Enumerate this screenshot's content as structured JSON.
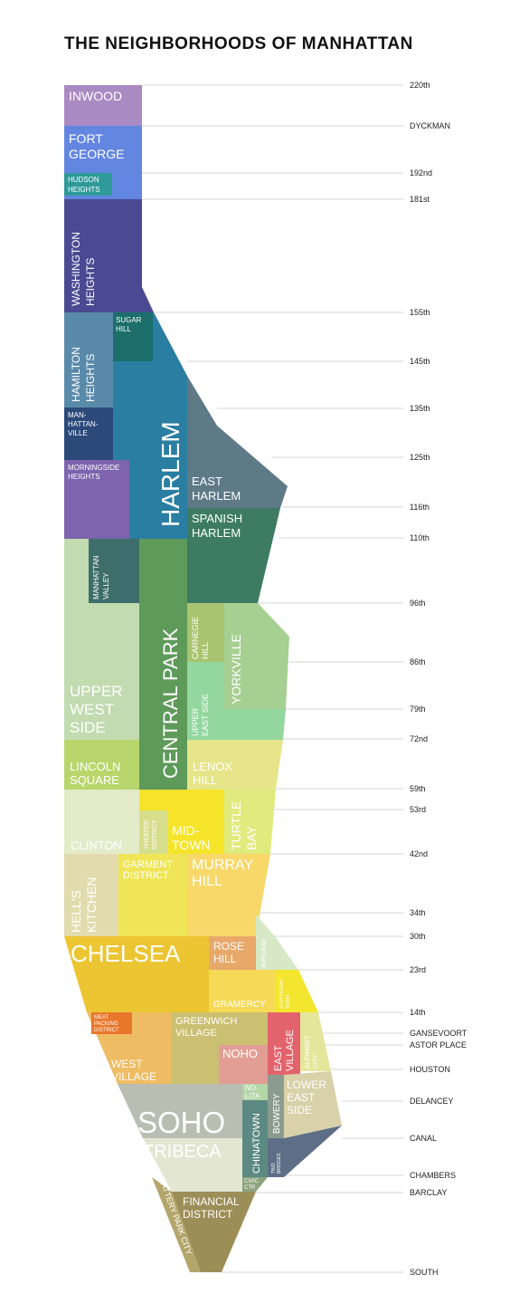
{
  "title": "THE NEIGHBORHOODS OF MANHATTAN",
  "streets": [
    "220th",
    "DYCKMAN",
    "192nd",
    "181st",
    "155th",
    "145th",
    "135th",
    "125th",
    "116th",
    "110th",
    "96th",
    "86th",
    "79th",
    "72nd",
    "59th",
    "53rd",
    "42nd",
    "34th",
    "30th",
    "23rd",
    "14th",
    "GANSEVOORT",
    "ASTOR PLACE",
    "HOUSTON",
    "DELANCEY",
    "CANAL",
    "CHAMBERS",
    "BARCLAY",
    "SOUTH"
  ],
  "neighborhoods": {
    "inwood": {
      "label": "INWOOD",
      "color": "#a98ac3"
    },
    "fort_george": {
      "label1": "FORT",
      "label2": "GEORGE",
      "color": "#6386e0"
    },
    "hudson_heights": {
      "label1": "HUDSON",
      "label2": "HEIGHTS",
      "color": "#2f9a9a"
    },
    "washington_heights": {
      "label1": "WASHINGTON",
      "label2": "HEIGHTS",
      "color": "#4a4a93"
    },
    "sugar_hill": {
      "label1": "SUGAR",
      "label2": "HILL",
      "color": "#1b6e6a"
    },
    "hamilton_heights": {
      "label1": "HAMILTON",
      "label2": "HEIGHTS",
      "color": "#5a8aaa"
    },
    "harlem": {
      "label": "HARLEM",
      "color": "#2a7ea2"
    },
    "manhattanville": {
      "label1": "MAN-",
      "label2": "HATTAN-",
      "label3": "VILLE",
      "color": "#2b4a7a"
    },
    "morningside_heights": {
      "label1": "MORNINGSIDE",
      "label2": "HEIGHTS",
      "color": "#7e63ae"
    },
    "east_harlem": {
      "label1": "EAST",
      "label2": "HARLEM",
      "color": "#5e7a87"
    },
    "spanish_harlem": {
      "label1": "SPANISH",
      "label2": "HARLEM",
      "color": "#3d7c62"
    },
    "manhattan_valley": {
      "label1": "MANHATTAN",
      "label2": "VALLEY",
      "color": "#3e6e6b"
    },
    "central_park": {
      "label": "CENTRAL PARK",
      "color": "#5e9a5a"
    },
    "upper_west_side": {
      "label1": "UPPER",
      "label2": "WEST",
      "label3": "SIDE",
      "color": "#c2dbb0"
    },
    "carnegie_hill": {
      "label1": "CARNEGIE",
      "label2": "HILL",
      "color": "#a9c470"
    },
    "yorkville": {
      "label": "YORKVILLE",
      "color": "#a6cf92"
    },
    "upper_east_side": {
      "label1": "UPPER",
      "label2": "EAST SIDE",
      "color": "#93d79e"
    },
    "lincoln_square": {
      "label1": "LINCOLN",
      "label2": "SQUARE",
      "color": "#b9d66c"
    },
    "lenox_hill": {
      "label1": "LENOX",
      "label2": "HILL",
      "color": "#e6e58a"
    },
    "clinton": {
      "label": "CLINTON",
      "color": "#e3ebc9"
    },
    "theater_district": {
      "label1": "THEATER",
      "label2": "DISTRICT",
      "color": "#d6de8c"
    },
    "midtown": {
      "label1": "MID-",
      "label2": "TOWN",
      "color": "#f5e42a"
    },
    "turtle_bay": {
      "label1": "TURTLE",
      "label2": "BAY",
      "color": "#e0eb7e"
    },
    "hells_kitchen": {
      "label1": "HELL'S",
      "label2": "KITCHEN",
      "color": "#e2dbad"
    },
    "garment_district": {
      "label1": "GARMENT",
      "label2": "DISTRICT",
      "color": "#efe556"
    },
    "murray_hill": {
      "label1": "MURRAY",
      "label2": "HILL",
      "color": "#f9d86a"
    },
    "kips_bay": {
      "label": "KIPS BAY",
      "color": "#d7e8c6"
    },
    "chelsea": {
      "label": "CHELSEA",
      "color": "#ecc532"
    },
    "rose_hill": {
      "label1": "ROSE",
      "label2": "HILL",
      "color": "#e8a86a"
    },
    "gramercy": {
      "label": "GRAMERCY",
      "color": "#f5d957"
    },
    "stuyvesant_town": {
      "label1": "STUYVESANT",
      "label2": "TOWN",
      "color": "#f4e62e"
    },
    "meat_packing_district": {
      "label1": "MEAT",
      "label2": "PACKING",
      "label3": "DISTRICT",
      "color": "#e8772c"
    },
    "greenwich_village": {
      "label1": "GREENWICH",
      "label2": "VILLAGE",
      "color": "#cbbf71"
    },
    "west_village": {
      "label1": "WEST",
      "label2": "VILLAGE",
      "color": "#eebc62"
    },
    "noho": {
      "label": "NOHO",
      "color": "#e29e94"
    },
    "east_village": {
      "label1": "EAST",
      "label2": "VILLAGE",
      "color": "#e3636c"
    },
    "alphabet_city": {
      "label1": "ALPHABET",
      "label2": "CITY",
      "color": "#e4e69c"
    },
    "lower_east_side": {
      "label1": "LOWER",
      "label2": "EAST",
      "label3": "SIDE",
      "color": "#d8d1a9"
    },
    "nolita": {
      "label1": "NO-",
      "label2": "LITA",
      "color": "#b2d6a6"
    },
    "soho": {
      "label": "SOHO",
      "color": "#b9bdb2"
    },
    "tribeca": {
      "label": "TRIBECA",
      "color": "#e3e7d2"
    },
    "chinatown": {
      "label": "CHINATOWN",
      "color": "#5c8a82"
    },
    "bowery": {
      "label": "BOWERY",
      "color": "#8b9c8f"
    },
    "two_bridges": {
      "label1": "TWO",
      "label2": "BRIDGES",
      "color": "#5e6e86"
    },
    "civic_center": {
      "label1": "CIVIC",
      "label2": "CTR",
      "color": "#8ca37c"
    },
    "battery_park_city": {
      "label": "BATTERY PARK CITY",
      "color": "#b3a66b"
    },
    "financial_district": {
      "label1": "FINANCIAL",
      "label2": "DISTRICT",
      "color": "#9c8e57"
    }
  }
}
